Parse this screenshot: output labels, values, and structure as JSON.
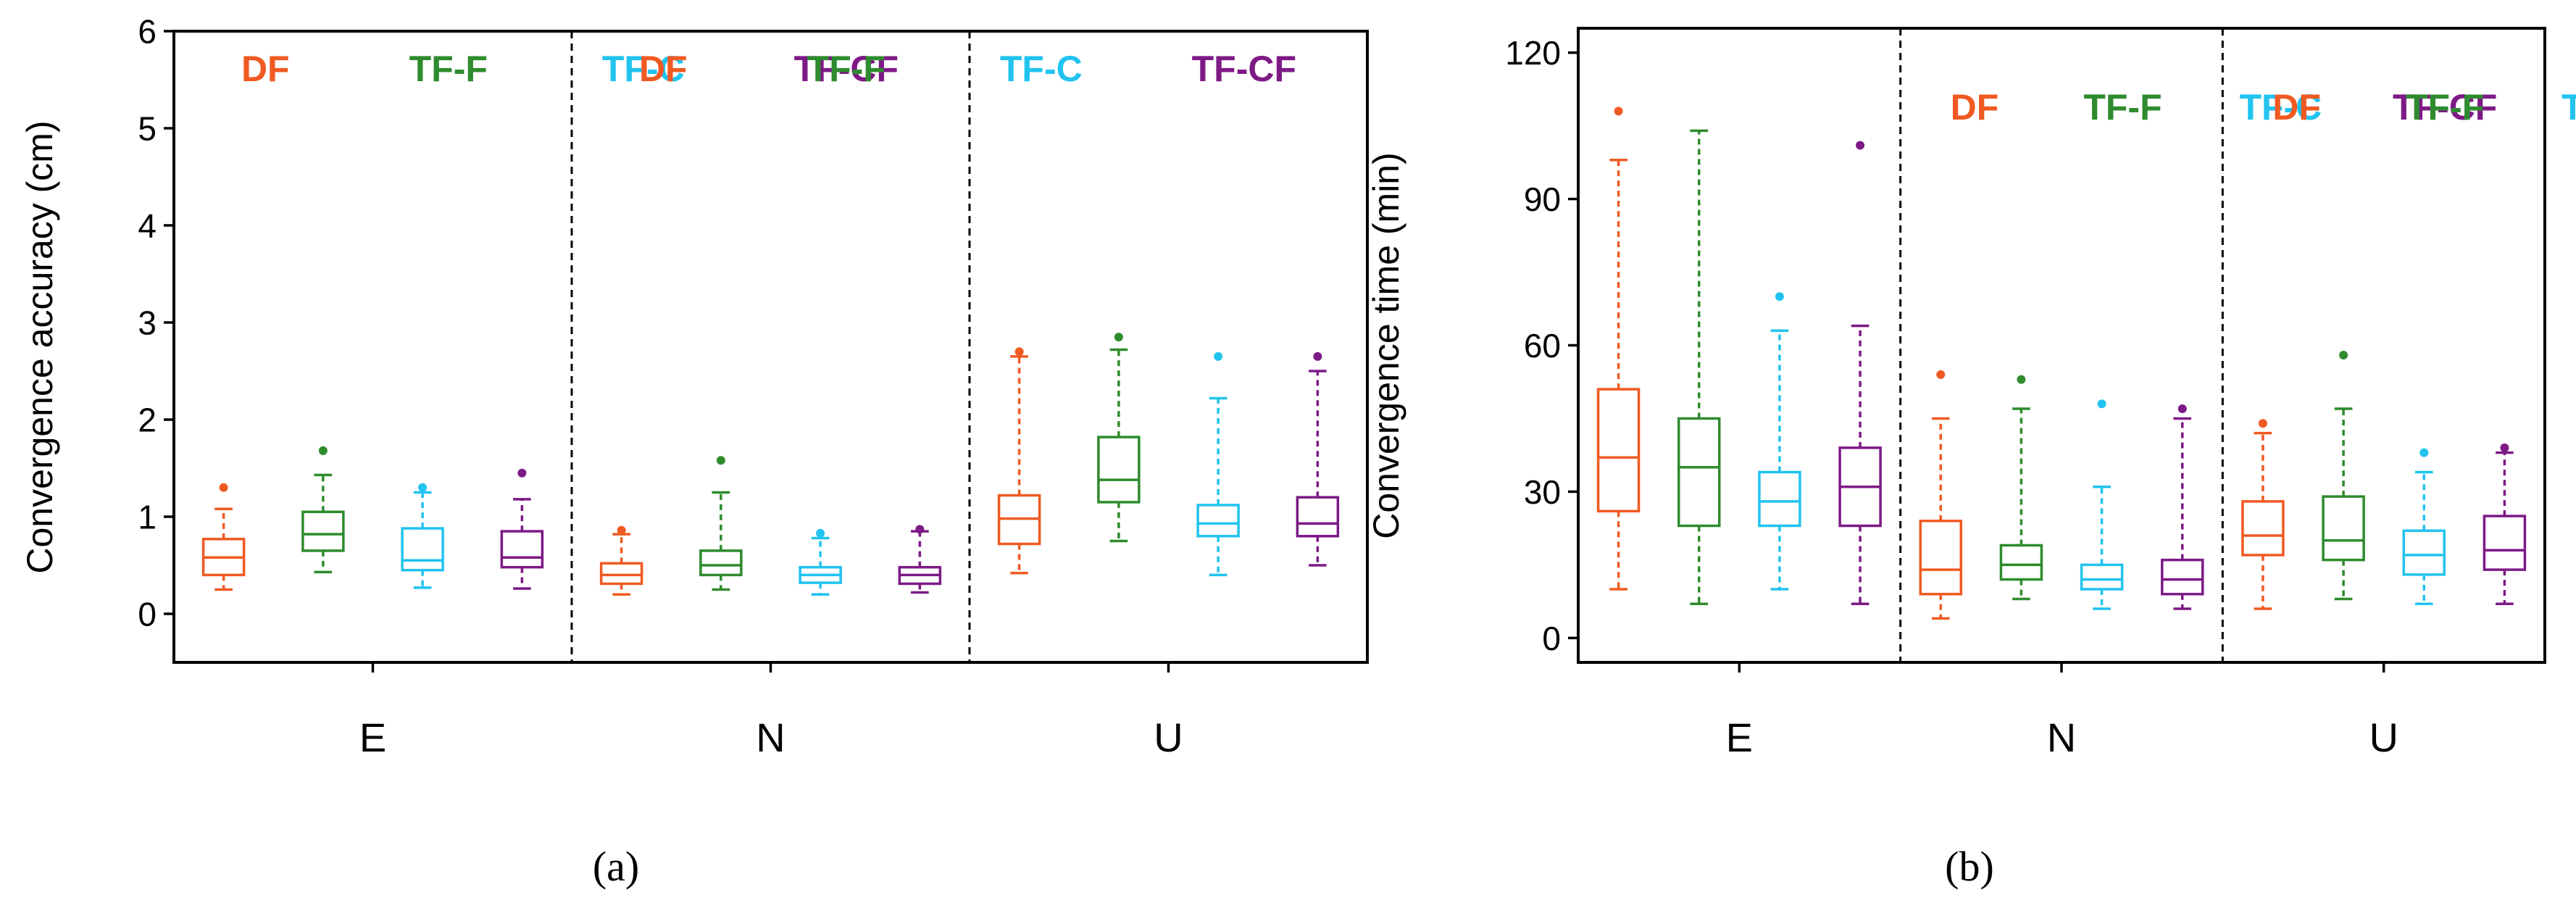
{
  "colors": {
    "DF": "#f05a22",
    "TF-F": "#2e8b2e",
    "TF-C": "#21c3ef",
    "TF-CF": "#7d1a86"
  },
  "chart_data": [
    {
      "id": "a",
      "type": "box",
      "panel_label": "(a)",
      "ylabel": "Convergence accuracy (cm)",
      "ylim": [
        -0.5,
        6
      ],
      "yticks": [
        0,
        1,
        2,
        3,
        4,
        5,
        6
      ],
      "categories": [
        "E",
        "N",
        "U"
      ],
      "series_names": [
        "DF",
        "TF-F",
        "TF-C",
        "TF-CF"
      ],
      "legend_groups": [
        0,
        1
      ],
      "boxes": {
        "E": {
          "DF": {
            "whisker_low": 0.25,
            "q1": 0.4,
            "median": 0.58,
            "q3": 0.77,
            "whisker_high": 1.08,
            "outliers": [
              1.3
            ]
          },
          "TF-F": {
            "whisker_low": 0.43,
            "q1": 0.65,
            "median": 0.82,
            "q3": 1.05,
            "whisker_high": 1.43,
            "outliers": [
              1.68
            ]
          },
          "TF-C": {
            "whisker_low": 0.27,
            "q1": 0.45,
            "median": 0.55,
            "q3": 0.88,
            "whisker_high": 1.25,
            "outliers": [
              1.3
            ]
          },
          "TF-CF": {
            "whisker_low": 0.26,
            "q1": 0.48,
            "median": 0.58,
            "q3": 0.85,
            "whisker_high": 1.18,
            "outliers": [
              1.45
            ]
          }
        },
        "N": {
          "DF": {
            "whisker_low": 0.2,
            "q1": 0.31,
            "median": 0.4,
            "q3": 0.52,
            "whisker_high": 0.82,
            "outliers": [
              0.86
            ]
          },
          "TF-F": {
            "whisker_low": 0.25,
            "q1": 0.4,
            "median": 0.5,
            "q3": 0.65,
            "whisker_high": 1.25,
            "outliers": [
              1.58
            ]
          },
          "TF-C": {
            "whisker_low": 0.2,
            "q1": 0.32,
            "median": 0.4,
            "q3": 0.48,
            "whisker_high": 0.78,
            "outliers": [
              0.83
            ]
          },
          "TF-CF": {
            "whisker_low": 0.22,
            "q1": 0.31,
            "median": 0.4,
            "q3": 0.48,
            "whisker_high": 0.85,
            "outliers": [
              0.87
            ]
          }
        },
        "U": {
          "DF": {
            "whisker_low": 0.42,
            "q1": 0.72,
            "median": 0.98,
            "q3": 1.22,
            "whisker_high": 2.65,
            "outliers": [
              2.7
            ]
          },
          "TF-F": {
            "whisker_low": 0.75,
            "q1": 1.15,
            "median": 1.38,
            "q3": 1.82,
            "whisker_high": 2.72,
            "outliers": [
              2.85
            ]
          },
          "TF-C": {
            "whisker_low": 0.4,
            "q1": 0.8,
            "median": 0.93,
            "q3": 1.12,
            "whisker_high": 2.22,
            "outliers": [
              2.65
            ]
          },
          "TF-CF": {
            "whisker_low": 0.5,
            "q1": 0.8,
            "median": 0.93,
            "q3": 1.2,
            "whisker_high": 2.5,
            "outliers": [
              2.65
            ]
          }
        }
      }
    },
    {
      "id": "b",
      "type": "box",
      "panel_label": "(b)",
      "ylabel": "Convergence time (min)",
      "ylim": [
        -5,
        125
      ],
      "yticks": [
        0,
        30,
        60,
        90,
        120
      ],
      "categories": [
        "E",
        "N",
        "U"
      ],
      "series_names": [
        "DF",
        "TF-F",
        "TF-C",
        "TF-CF"
      ],
      "legend_groups": [
        1,
        2
      ],
      "boxes": {
        "E": {
          "DF": {
            "whisker_low": 10,
            "q1": 26,
            "median": 37,
            "q3": 51,
            "whisker_high": 98,
            "outliers": [
              108
            ]
          },
          "TF-F": {
            "whisker_low": 7,
            "q1": 23,
            "median": 35,
            "q3": 45,
            "whisker_high": 104,
            "outliers": []
          },
          "TF-C": {
            "whisker_low": 10,
            "q1": 23,
            "median": 28,
            "q3": 34,
            "whisker_high": 63,
            "outliers": [
              70
            ]
          },
          "TF-CF": {
            "whisker_low": 7,
            "q1": 23,
            "median": 31,
            "q3": 39,
            "whisker_high": 64,
            "outliers": [
              101
            ]
          }
        },
        "N": {
          "DF": {
            "whisker_low": 4,
            "q1": 9,
            "median": 14,
            "q3": 24,
            "whisker_high": 45,
            "outliers": [
              54
            ]
          },
          "TF-F": {
            "whisker_low": 8,
            "q1": 12,
            "median": 15,
            "q3": 19,
            "whisker_high": 47,
            "outliers": [
              53
            ]
          },
          "TF-C": {
            "whisker_low": 6,
            "q1": 10,
            "median": 12,
            "q3": 15,
            "whisker_high": 31,
            "outliers": [
              48
            ]
          },
          "TF-CF": {
            "whisker_low": 6,
            "q1": 9,
            "median": 12,
            "q3": 16,
            "whisker_high": 45,
            "outliers": [
              47
            ]
          }
        },
        "U": {
          "DF": {
            "whisker_low": 6,
            "q1": 17,
            "median": 21,
            "q3": 28,
            "whisker_high": 42,
            "outliers": [
              44
            ]
          },
          "TF-F": {
            "whisker_low": 8,
            "q1": 16,
            "median": 20,
            "q3": 29,
            "whisker_high": 47,
            "outliers": [
              58
            ]
          },
          "TF-C": {
            "whisker_low": 7,
            "q1": 13,
            "median": 17,
            "q3": 22,
            "whisker_high": 34,
            "outliers": [
              38
            ]
          },
          "TF-CF": {
            "whisker_low": 7,
            "q1": 14,
            "median": 18,
            "q3": 25,
            "whisker_high": 38,
            "outliers": [
              39
            ]
          }
        }
      }
    }
  ]
}
